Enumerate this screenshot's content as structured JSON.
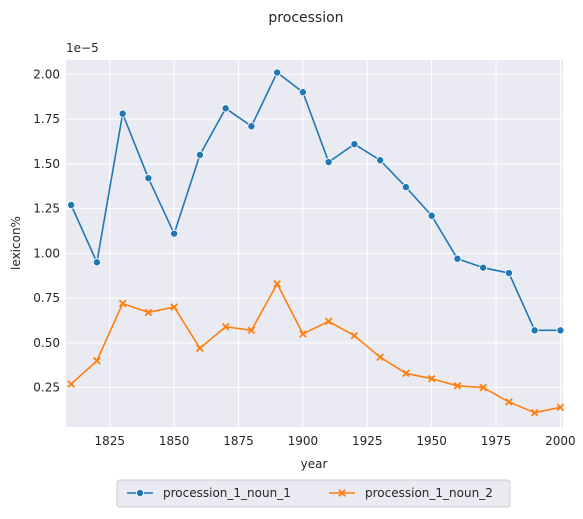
{
  "chart_data": {
    "type": "line",
    "title": "procession",
    "xlabel": "year",
    "ylabel": "lexicon%",
    "y_offset_label": "1e−5",
    "y_scale_factor": 1e-05,
    "xlim": [
      1808,
      2001
    ],
    "ylim": [
      0.03,
      2.08
    ],
    "x_ticks": [
      1825,
      1850,
      1875,
      1900,
      1925,
      1950,
      1975,
      2000
    ],
    "y_ticks": [
      0.25,
      0.5,
      0.75,
      1.0,
      1.25,
      1.5,
      1.75,
      2.0
    ],
    "y_tick_labels": [
      "0.25",
      "0.50",
      "0.75",
      "1.00",
      "1.25",
      "1.50",
      "1.75",
      "2.00"
    ],
    "grid": true,
    "legend_position": "bottom-center",
    "x": [
      1810,
      1820,
      1830,
      1840,
      1850,
      1860,
      1870,
      1880,
      1890,
      1900,
      1910,
      1920,
      1930,
      1940,
      1950,
      1960,
      1970,
      1980,
      1990,
      2000
    ],
    "series": [
      {
        "name": "procession_1_noun_1",
        "color": "#1f77b4",
        "marker": "circle",
        "values": [
          1.27,
          0.95,
          1.78,
          1.42,
          1.11,
          1.55,
          1.81,
          1.71,
          2.01,
          1.9,
          1.51,
          1.61,
          1.52,
          1.37,
          1.21,
          0.97,
          0.92,
          0.89,
          0.57,
          0.57
        ]
      },
      {
        "name": "procession_1_noun_2",
        "color": "#ff7f0e",
        "marker": "x",
        "values": [
          0.27,
          0.4,
          0.72,
          0.67,
          0.7,
          0.47,
          0.59,
          0.57,
          0.83,
          0.55,
          0.62,
          0.54,
          0.42,
          0.33,
          0.3,
          0.26,
          0.25,
          0.17,
          0.11,
          0.14
        ]
      }
    ]
  }
}
